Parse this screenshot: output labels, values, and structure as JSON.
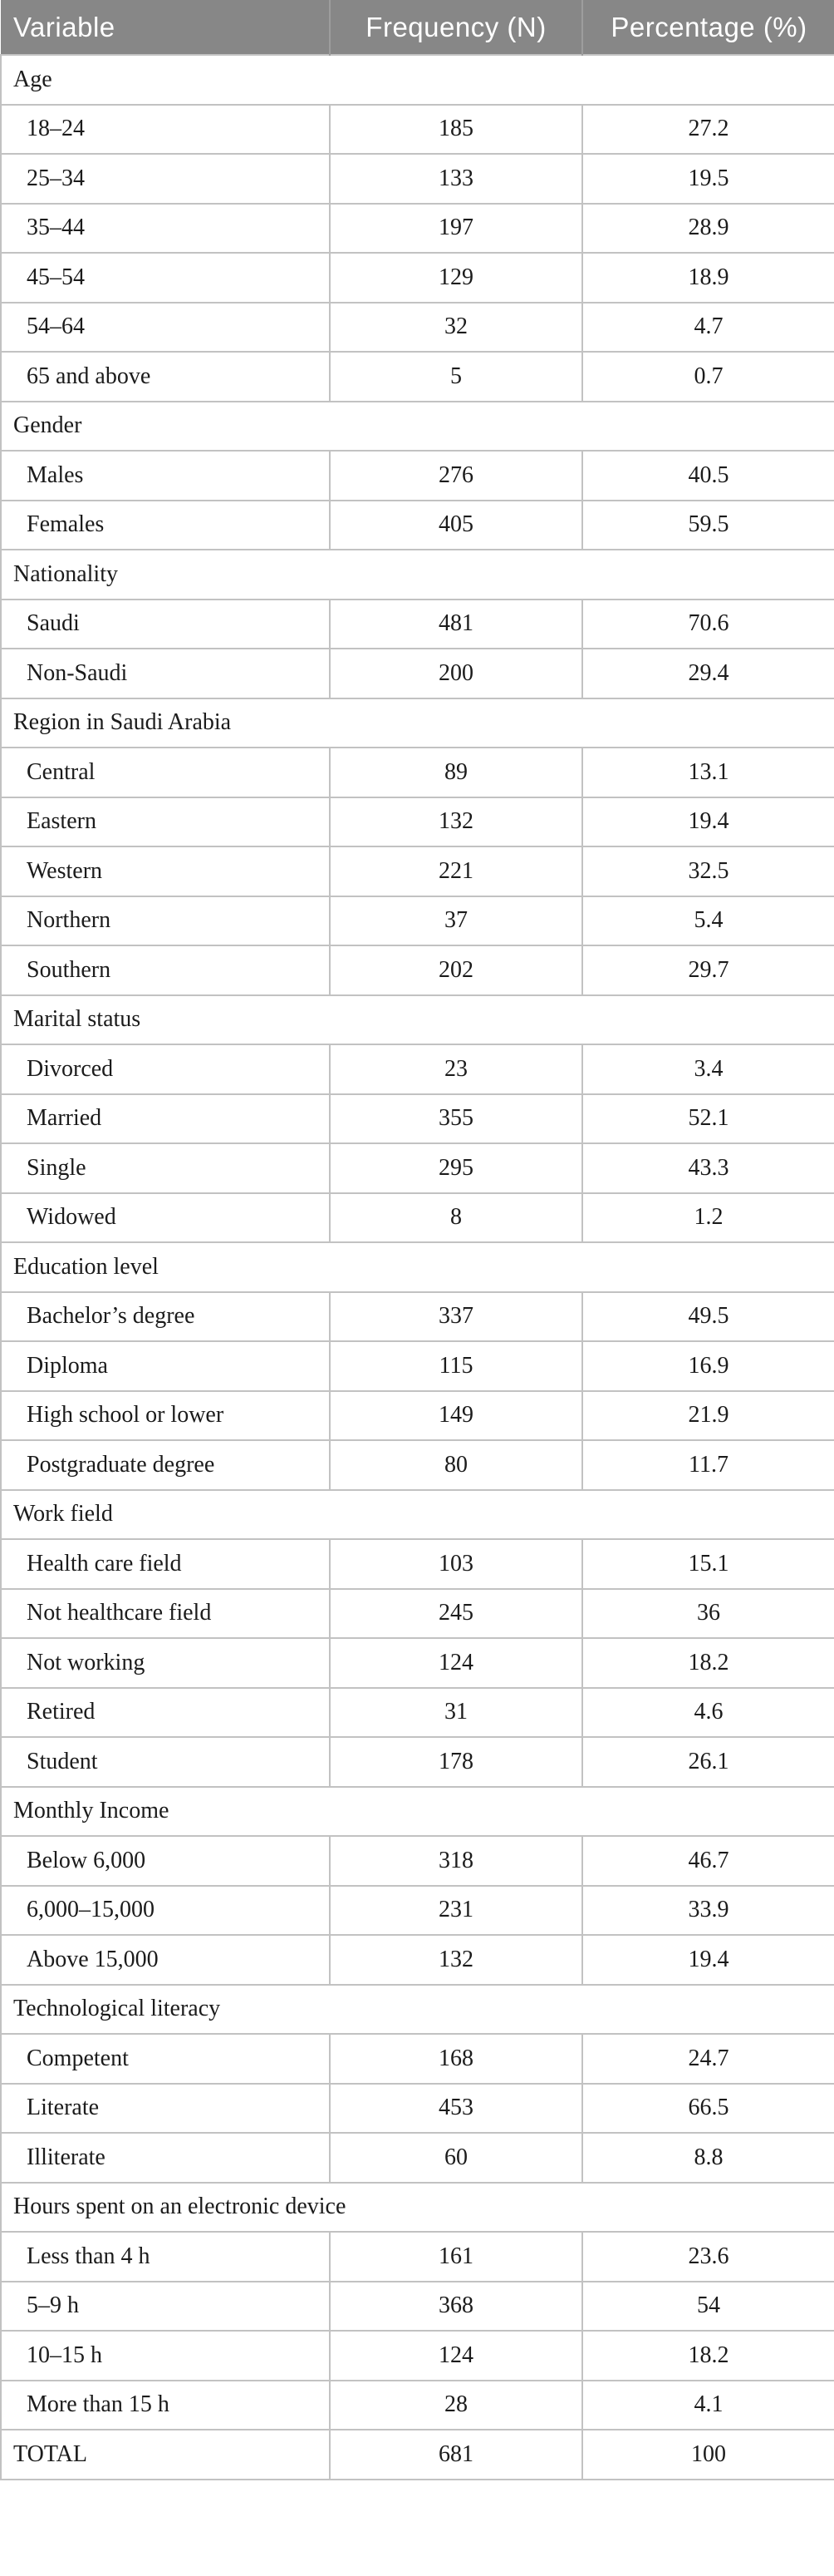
{
  "table": {
    "header": {
      "variable": "Variable",
      "frequency": "Frequency (N)",
      "percentage": "Percentage (%)"
    },
    "sections": [
      {
        "label": "Age",
        "rows": [
          {
            "variable": "18–24",
            "frequency": "185",
            "percentage": "27.2"
          },
          {
            "variable": "25–34",
            "frequency": "133",
            "percentage": "19.5"
          },
          {
            "variable": "35–44",
            "frequency": "197",
            "percentage": "28.9"
          },
          {
            "variable": "45–54",
            "frequency": "129",
            "percentage": "18.9"
          },
          {
            "variable": "54–64",
            "frequency": "32",
            "percentage": "4.7"
          },
          {
            "variable": "65 and above",
            "frequency": "5",
            "percentage": "0.7"
          }
        ]
      },
      {
        "label": "Gender",
        "rows": [
          {
            "variable": "Males",
            "frequency": "276",
            "percentage": "40.5"
          },
          {
            "variable": "Females",
            "frequency": "405",
            "percentage": "59.5"
          }
        ]
      },
      {
        "label": "Nationality",
        "rows": [
          {
            "variable": "Saudi",
            "frequency": "481",
            "percentage": "70.6"
          },
          {
            "variable": "Non-Saudi",
            "frequency": "200",
            "percentage": "29.4"
          }
        ]
      },
      {
        "label": "Region in Saudi Arabia",
        "rows": [
          {
            "variable": "Central",
            "frequency": "89",
            "percentage": "13.1"
          },
          {
            "variable": "Eastern",
            "frequency": "132",
            "percentage": "19.4"
          },
          {
            "variable": "Western",
            "frequency": "221",
            "percentage": "32.5"
          },
          {
            "variable": "Northern",
            "frequency": "37",
            "percentage": "5.4"
          },
          {
            "variable": "Southern",
            "frequency": "202",
            "percentage": "29.7"
          }
        ]
      },
      {
        "label": "Marital status",
        "rows": [
          {
            "variable": "Divorced",
            "frequency": "23",
            "percentage": "3.4"
          },
          {
            "variable": "Married",
            "frequency": "355",
            "percentage": "52.1"
          },
          {
            "variable": "Single",
            "frequency": "295",
            "percentage": "43.3"
          },
          {
            "variable": "Widowed",
            "frequency": "8",
            "percentage": "1.2"
          }
        ]
      },
      {
        "label": "Education level",
        "rows": [
          {
            "variable": "Bachelor’s degree",
            "frequency": "337",
            "percentage": "49.5"
          },
          {
            "variable": "Diploma",
            "frequency": "115",
            "percentage": "16.9"
          },
          {
            "variable": "High school or lower",
            "frequency": "149",
            "percentage": "21.9"
          },
          {
            "variable": "Postgraduate degree",
            "frequency": "80",
            "percentage": "11.7"
          }
        ]
      },
      {
        "label": "Work field",
        "rows": [
          {
            "variable": "Health care field",
            "frequency": "103",
            "percentage": "15.1"
          },
          {
            "variable": "Not healthcare field",
            "frequency": "245",
            "percentage": "36"
          },
          {
            "variable": "Not working",
            "frequency": "124",
            "percentage": "18.2"
          },
          {
            "variable": "Retired",
            "frequency": "31",
            "percentage": "4.6"
          },
          {
            "variable": "Student",
            "frequency": "178",
            "percentage": "26.1"
          }
        ]
      },
      {
        "label": "Monthly Income",
        "rows": [
          {
            "variable": "Below 6,000",
            "frequency": "318",
            "percentage": "46.7"
          },
          {
            "variable": "6,000–15,000",
            "frequency": "231",
            "percentage": "33.9"
          },
          {
            "variable": "Above 15,000",
            "frequency": "132",
            "percentage": "19.4"
          }
        ]
      },
      {
        "label": "Technological literacy",
        "rows": [
          {
            "variable": "Competent",
            "frequency": "168",
            "percentage": "24.7"
          },
          {
            "variable": "Literate",
            "frequency": "453",
            "percentage": "66.5"
          },
          {
            "variable": "Illiterate",
            "frequency": "60",
            "percentage": "8.8"
          }
        ]
      },
      {
        "label": "Hours spent on an electronic device",
        "rows": [
          {
            "variable": "Less than 4 h",
            "frequency": "161",
            "percentage": "23.6"
          },
          {
            "variable": "5–9 h",
            "frequency": "368",
            "percentage": "54"
          },
          {
            "variable": "10–15 h",
            "frequency": "124",
            "percentage": "18.2"
          },
          {
            "variable": "More than 15 h",
            "frequency": "28",
            "percentage": "4.1"
          }
        ]
      }
    ],
    "total_row": {
      "variable": "TOTAL",
      "frequency": "681",
      "percentage": "100"
    }
  },
  "colors": {
    "header_bg": "#878787",
    "header_text": "#ffffff",
    "header_divider": "#9d9d9d",
    "border": "#c2c2c2",
    "body_text": "#1b1b1b"
  }
}
